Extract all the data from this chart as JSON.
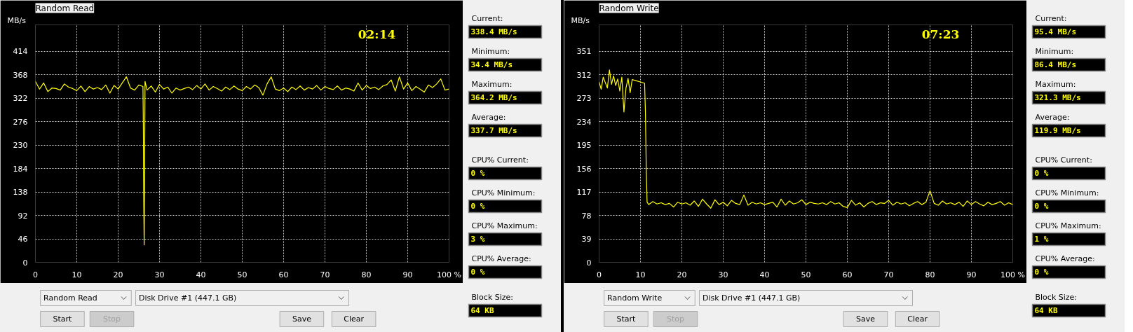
{
  "chart_data": [
    {
      "type": "line",
      "title": "Random Read",
      "ylabel": "MB/s",
      "xlim": [
        0,
        100
      ],
      "ylim": [
        0,
        466
      ],
      "grid": true,
      "marker": "none",
      "line_style": "solid",
      "xticks": [
        0,
        10,
        20,
        30,
        40,
        50,
        60,
        70,
        80,
        90,
        {
          "value": 100,
          "label": "100 %"
        }
      ],
      "yticks": [
        0,
        46,
        92,
        138,
        184,
        230,
        276,
        322,
        368,
        414
      ],
      "annotations": [
        "02:14",
        "Random Read",
        "Disk Drive #1 (447.1 GB)",
        "Start",
        "Stop",
        "Save",
        "Clear"
      ],
      "series": [
        {
          "color": "#ffff00",
          "x": [
            0,
            1,
            2,
            3,
            4,
            5,
            6,
            7,
            8,
            9,
            10,
            11,
            12,
            13,
            14,
            15,
            16,
            17,
            18,
            19,
            20,
            21,
            22,
            23,
            24,
            25,
            26,
            26.1,
            26.2,
            26.3,
            26.4,
            26.5,
            27,
            28,
            29,
            30,
            31,
            32,
            33,
            34,
            35,
            36,
            37,
            38,
            39,
            40,
            41,
            42,
            43,
            44,
            45,
            46,
            47,
            48,
            49,
            50,
            51,
            52,
            53,
            54,
            55,
            56,
            57,
            58,
            59,
            60,
            61,
            62,
            63,
            64,
            65,
            66,
            67,
            68,
            69,
            70,
            71,
            72,
            73,
            74,
            75,
            76,
            77,
            78,
            79,
            80,
            81,
            82,
            83,
            84,
            85,
            86,
            87,
            88,
            89,
            90,
            91,
            92,
            93,
            94,
            95,
            96,
            97,
            98,
            99,
            100
          ],
          "values": [
            355,
            340,
            352,
            335,
            342,
            341,
            338,
            350,
            344,
            341,
            337,
            346,
            335,
            345,
            340,
            343,
            339,
            348,
            332,
            347,
            340,
            352,
            364,
            342,
            338,
            348,
            345,
            262,
            110,
            34,
            195,
            355,
            338,
            346,
            334,
            349,
            340,
            344,
            332,
            342,
            338,
            341,
            344,
            339,
            347,
            340,
            350,
            338,
            345,
            341,
            336,
            344,
            339,
            346,
            340,
            337,
            345,
            340,
            348,
            343,
            328,
            350,
            364,
            340,
            337,
            342,
            335,
            344,
            339,
            346,
            338,
            343,
            340,
            347,
            338,
            345,
            341,
            339,
            346,
            338,
            342,
            340,
            336,
            352,
            338,
            347,
            341,
            344,
            339,
            346,
            349,
            358,
            336,
            364,
            340,
            352,
            337,
            345,
            340,
            334,
            348,
            343,
            350,
            360,
            338,
            340
          ]
        }
      ]
    },
    {
      "type": "other",
      "annotations": [
        "Current:",
        "338.4 MB/s",
        "Minimum:",
        "34.4 MB/s",
        "Maximum:",
        "364.2 MB/s",
        "Average:",
        "337.7 MB/s",
        "CPU% Current:",
        "0 %",
        "CPU% Minimum:",
        "0 %",
        "CPU% Maximum:",
        "3 %",
        "CPU% Average:",
        "0 %",
        "Block Size:",
        "64 KB"
      ]
    },
    {
      "type": "line",
      "title": "Random Write",
      "ylabel": "MB/s",
      "xlim": [
        0,
        100
      ],
      "ylim": [
        0,
        395
      ],
      "grid": true,
      "marker": "none",
      "line_style": "solid",
      "xticks": [
        0,
        10,
        20,
        30,
        40,
        50,
        60,
        70,
        80,
        90,
        {
          "value": 100,
          "label": "100 %"
        }
      ],
      "yticks": [
        0,
        39,
        78,
        117,
        156,
        195,
        234,
        273,
        312,
        351
      ],
      "annotations": [
        "07:23",
        "Random Write",
        "Disk Drive #1 (447.1 GB)",
        "Start",
        "Stop",
        "Save",
        "Clear"
      ],
      "series": [
        {
          "color": "#ffff00",
          "x": [
            0,
            0.5,
            1,
            2,
            2.5,
            3,
            3.5,
            4,
            4.5,
            5,
            5.5,
            6,
            6.5,
            7,
            7.5,
            8,
            9,
            10,
            11,
            11.2,
            11.4,
            11.6,
            12,
            13,
            14,
            15,
            16,
            17,
            18,
            19,
            20,
            21,
            22,
            23,
            24,
            25,
            26,
            27,
            28,
            29,
            30,
            31,
            32,
            33,
            34,
            35,
            36,
            37,
            38,
            39,
            40,
            41,
            42,
            43,
            44,
            45,
            46,
            47,
            48,
            49,
            50,
            51,
            52,
            53,
            54,
            55,
            56,
            57,
            58,
            59,
            60,
            61,
            62,
            63,
            64,
            65,
            66,
            67,
            68,
            69,
            70,
            71,
            72,
            73,
            74,
            75,
            76,
            77,
            78,
            79,
            80,
            81,
            82,
            83,
            84,
            85,
            86,
            87,
            88,
            89,
            90,
            91,
            92,
            93,
            94,
            95,
            96,
            97,
            98,
            99,
            100
          ],
          "values": [
            300,
            288,
            308,
            290,
            320,
            296,
            310,
            294,
            305,
            285,
            308,
            250,
            290,
            306,
            282,
            304,
            302,
            300,
            298,
            250,
            155,
            100,
            96,
            101,
            97,
            99,
            96,
            98,
            92,
            100,
            97,
            99,
            95,
            102,
            93,
            105,
            97,
            90,
            104,
            96,
            100,
            94,
            103,
            98,
            96,
            112,
            95,
            100,
            97,
            99,
            96,
            98,
            100,
            92,
            105,
            95,
            102,
            97,
            99,
            104,
            96,
            100,
            98,
            97,
            99,
            96,
            101,
            97,
            99,
            93,
            91,
            103,
            95,
            99,
            92,
            98,
            101,
            96,
            99,
            98,
            103,
            95,
            100,
            97,
            99,
            94,
            98,
            101,
            96,
            100,
            119,
            98,
            95,
            102,
            97,
            99,
            96,
            100,
            93,
            102,
            96,
            101,
            97,
            94,
            100,
            96,
            98,
            101,
            95,
            99,
            96
          ]
        }
      ]
    },
    {
      "type": "other",
      "annotations": [
        "Current:",
        "95.4 MB/s",
        "Minimum:",
        "86.4 MB/s",
        "Maximum:",
        "321.3 MB/s",
        "Average:",
        "119.9 MB/s",
        "CPU% Current:",
        "0 %",
        "CPU% Minimum:",
        "0 %",
        "CPU% Maximum:",
        "1 %",
        "CPU% Average:",
        "0 %",
        "Block Size:",
        "64 KB"
      ]
    }
  ]
}
